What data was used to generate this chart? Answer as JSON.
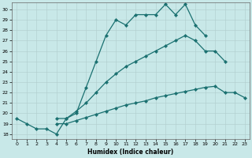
{
  "title": "",
  "xlabel": "Humidex (Indice chaleur)",
  "background_color": "#c8e8e8",
  "grid_color": "#b0cccc",
  "line_color": "#1a7070",
  "xlim": [
    -0.5,
    23.5
  ],
  "ylim": [
    17.5,
    30.7
  ],
  "xticks": [
    0,
    1,
    2,
    3,
    4,
    5,
    6,
    7,
    8,
    9,
    10,
    11,
    12,
    13,
    14,
    15,
    16,
    17,
    18,
    19,
    20,
    21,
    22,
    23
  ],
  "yticks": [
    18,
    19,
    20,
    21,
    22,
    23,
    24,
    25,
    26,
    27,
    28,
    29,
    30
  ],
  "line1_x": [
    0,
    1,
    2,
    3,
    4,
    5,
    6,
    7,
    8,
    9,
    10,
    11,
    12,
    13,
    14,
    15,
    16,
    17,
    18,
    19
  ],
  "line1_y": [
    19.5,
    19.0,
    18.5,
    18.5,
    18.0,
    19.5,
    20.0,
    22.5,
    25.0,
    27.5,
    29.0,
    28.5,
    29.5,
    29.5,
    29.5,
    30.5,
    29.5,
    30.5,
    28.5,
    27.5
  ],
  "line2_x": [
    4,
    5,
    6,
    7,
    8,
    9,
    10,
    11,
    12,
    13,
    14,
    15,
    16,
    17,
    18,
    19,
    20,
    21
  ],
  "line2_y": [
    19.5,
    19.5,
    20.2,
    21.0,
    22.0,
    23.0,
    23.8,
    24.5,
    25.0,
    25.5,
    26.0,
    26.5,
    27.0,
    27.5,
    27.0,
    26.0,
    26.0,
    25.0
  ],
  "line3_x": [
    4,
    5,
    6,
    7,
    8,
    9,
    10,
    11,
    12,
    13,
    14,
    15,
    16,
    17,
    18,
    19,
    20,
    21,
    22,
    23
  ],
  "line3_y": [
    19.0,
    19.0,
    19.3,
    19.6,
    19.9,
    20.2,
    20.5,
    20.8,
    21.0,
    21.2,
    21.5,
    21.7,
    21.9,
    22.1,
    22.3,
    22.5,
    22.6,
    22.0,
    22.0,
    21.5
  ]
}
